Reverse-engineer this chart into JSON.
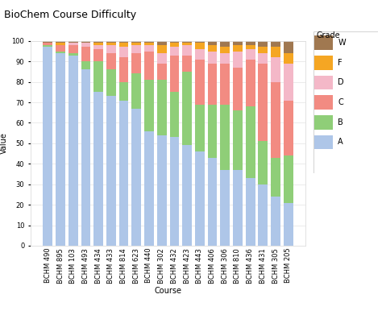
{
  "title": "BioChem Course Difficulty",
  "xlabel": "Course",
  "ylabel": "Value",
  "categories": [
    "BCHM 490",
    "BCHM 895",
    "BCHM 103",
    "BCHM 493",
    "BCHM 434",
    "BCHM 433",
    "BCHM 814",
    "BCHM 623",
    "BCHM 440",
    "BCHM 302",
    "BCHM 432",
    "BCHM 423",
    "BCHM 443",
    "BCHM 406",
    "BCHM 306",
    "BCHM 810",
    "BCHM 436",
    "BCHM 431",
    "BCHM 305",
    "BCHM 205"
  ],
  "grades": [
    "A",
    "B",
    "C",
    "D",
    "F",
    "W"
  ],
  "colors": {
    "A": "#aec6e8",
    "B": "#8fce78",
    "C": "#f28b82",
    "D": "#f4b8c8",
    "F": "#f5a623",
    "W": "#a07850"
  },
  "data": {
    "A": [
      97,
      94,
      93,
      86,
      75,
      73,
      71,
      67,
      56,
      54,
      53,
      49,
      46,
      43,
      37,
      37,
      33,
      30,
      24,
      21
    ],
    "B": [
      1,
      1,
      1,
      4,
      15,
      13,
      9,
      17,
      25,
      27,
      22,
      36,
      23,
      26,
      32,
      29,
      35,
      21,
      19,
      23
    ],
    "C": [
      1,
      3,
      4,
      7,
      6,
      8,
      12,
      10,
      14,
      8,
      18,
      8,
      22,
      20,
      20,
      21,
      23,
      38,
      37,
      27
    ],
    "D": [
      0,
      0,
      1,
      2,
      2,
      4,
      5,
      4,
      3,
      5,
      4,
      5,
      5,
      6,
      5,
      8,
      5,
      5,
      12,
      18
    ],
    "F": [
      0,
      1,
      0,
      0,
      1,
      1,
      2,
      1,
      1,
      4,
      2,
      1,
      3,
      3,
      3,
      3,
      2,
      3,
      5,
      5
    ],
    "W": [
      1,
      1,
      1,
      1,
      1,
      1,
      1,
      1,
      1,
      2,
      1,
      1,
      1,
      2,
      3,
      2,
      2,
      3,
      3,
      6
    ]
  },
  "ylim": [
    0,
    100
  ],
  "yticks": [
    0,
    10,
    20,
    30,
    40,
    50,
    60,
    70,
    80,
    90,
    100
  ],
  "legend_title": "Grade",
  "figsize": [
    4.74,
    3.91
  ],
  "dpi": 100,
  "title_fontsize": 9,
  "axis_label_fontsize": 7,
  "tick_fontsize": 6,
  "legend_fontsize": 7,
  "bg_color": "#ffffff",
  "plot_bg_color": "#ffffff",
  "bar_width": 0.75,
  "grid_color": "#e8e8e8"
}
